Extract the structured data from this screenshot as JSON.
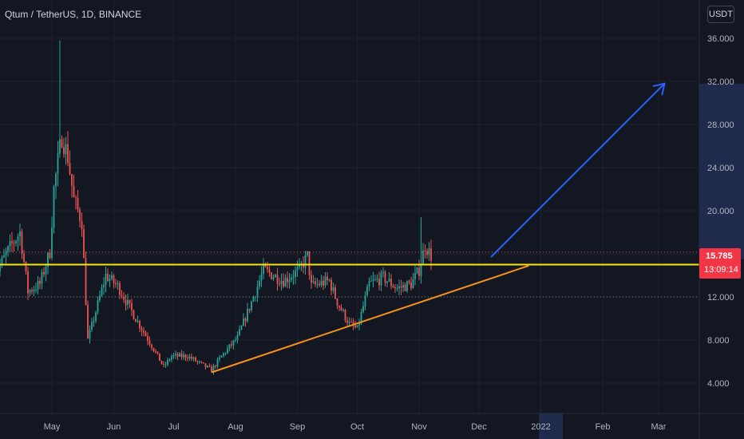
{
  "header": {
    "title": "Qtum / TetherUS, 1D, BINANCE",
    "currency": "USDT"
  },
  "last_price": {
    "value": 15.785,
    "label": "15.785",
    "countdown": "13:09:14"
  },
  "colors": {
    "background": "#131722",
    "grid": "#1e222d",
    "up": "#26a69a",
    "down": "#ef5350",
    "support_line": "#f5e60f",
    "trend_line": "#f7931a",
    "arrow": "#2962ff",
    "price_tag": "#f23645",
    "axis_text": "#b2b5be"
  },
  "chart_data": {
    "type": "candlestick",
    "title": "Qtum / TetherUS, 1D, BINANCE",
    "y_axis": {
      "ticks": [
        "36.000",
        "32.000",
        "28.000",
        "24.000",
        "20.000",
        "16.000",
        "12.000",
        "8.000",
        "4.000"
      ],
      "ylim": [
        1.5,
        38.2
      ]
    },
    "x_axis": {
      "ticks": [
        "May",
        "Jun",
        "Jul",
        "Aug",
        "Sep",
        "Oct",
        "Nov",
        "Dec",
        "2022",
        "Feb",
        "Mar"
      ],
      "range": [
        "2021-04-01",
        "2022-03-26"
      ]
    },
    "candle_path": [
      [
        "2021-04-01",
        13.6
      ],
      [
        "2021-04-10",
        16.6
      ],
      [
        "2021-04-15",
        18.0
      ],
      [
        "2021-04-19",
        12.5
      ],
      [
        "2021-04-25",
        13.2
      ],
      [
        "2021-04-30",
        16.2
      ],
      [
        "2021-05-02",
        22.0
      ],
      [
        "2021-05-06",
        27.0
      ],
      [
        "2021-05-09",
        25.0
      ],
      [
        "2021-05-12",
        21.0
      ],
      [
        "2021-05-16",
        19.0
      ],
      [
        "2021-05-19",
        8.0
      ],
      [
        "2021-05-22",
        10.0
      ],
      [
        "2021-05-28",
        14.0
      ],
      [
        "2021-06-03",
        13.0
      ],
      [
        "2021-06-12",
        10.0
      ],
      [
        "2021-06-20",
        7.5
      ],
      [
        "2021-06-26",
        5.5
      ],
      [
        "2021-06-30",
        6.5
      ],
      [
        "2021-07-08",
        6.5
      ],
      [
        "2021-07-20",
        5.2
      ],
      [
        "2021-07-25",
        6.5
      ],
      [
        "2021-08-02",
        8.2
      ],
      [
        "2021-08-10",
        12.0
      ],
      [
        "2021-08-15",
        14.5
      ],
      [
        "2021-08-25",
        13.5
      ],
      [
        "2021-09-02",
        14.5
      ],
      [
        "2021-09-06",
        15.8
      ],
      [
        "2021-09-08",
        13.0
      ],
      [
        "2021-09-17",
        13.5
      ],
      [
        "2021-09-21",
        11.5
      ],
      [
        "2021-09-27",
        9.5
      ],
      [
        "2021-10-01",
        9.0
      ],
      [
        "2021-10-07",
        13.2
      ],
      [
        "2021-10-14",
        13.8
      ],
      [
        "2021-10-21",
        12.8
      ],
      [
        "2021-10-28",
        13.2
      ],
      [
        "2021-11-01",
        14.5
      ],
      [
        "2021-11-04",
        16.8
      ],
      [
        "2021-11-07",
        15.8
      ]
    ],
    "candle_path_note": "approximate close path used to render daily candles",
    "spike_highs": [
      [
        "2021-05-05",
        35.8
      ],
      [
        "2021-11-02",
        19.4
      ]
    ],
    "support_line": {
      "y": 15.0
    },
    "trend_line": {
      "from": [
        "2021-07-20",
        5.0
      ],
      "to": [
        "2021-12-26",
        14.9
      ]
    },
    "projection_arrow": {
      "from": [
        "2021-12-07",
        15.7
      ],
      "to": [
        "2022-03-04",
        31.8
      ]
    },
    "highlight_price_band": [
      15.5,
      31.8
    ],
    "highlight_date_band": [
      "2021-12-31",
      "2022-01-12"
    ],
    "grid": true
  }
}
